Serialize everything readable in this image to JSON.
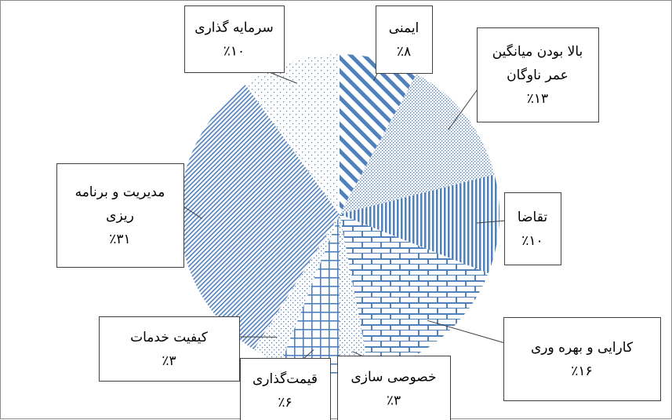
{
  "chart_data": {
    "type": "pie",
    "title": "",
    "legend": "none (callout data labels)",
    "slices": [
      {
        "label_lines": [
          "ایمنی"
        ],
        "pct_text": "٪۸",
        "value": 8,
        "pattern": "wide-diagonal"
      },
      {
        "label_lines": [
          "بالا بودن میانگین",
          "عمر ناوگان"
        ],
        "pct_text": "٪۱۳",
        "value": 13,
        "pattern": "dots-dense"
      },
      {
        "label_lines": [
          "تقاضا"
        ],
        "pct_text": "٪۱۰",
        "value": 10,
        "pattern": "vertical-lines"
      },
      {
        "label_lines": [
          "کارایی و بهره وری"
        ],
        "pct_text": "٪۱۶",
        "value": 16,
        "pattern": "bricks"
      },
      {
        "label_lines": [
          "خصوصی سازی"
        ],
        "pct_text": "٪۳",
        "value": 3,
        "pattern": "dots-light"
      },
      {
        "label_lines": [
          "قیمت‌گذاری"
        ],
        "pct_text": "٪۶",
        "value": 6,
        "pattern": "grid"
      },
      {
        "label_lines": [
          "کیفیت خدمات"
        ],
        "pct_text": "٪۳",
        "value": 3,
        "pattern": "dots-light"
      },
      {
        "label_lines": [
          "مدیریت و برنامه",
          "ریزی"
        ],
        "pct_text": "٪۳۱",
        "value": 31,
        "pattern": "small-diagonal"
      },
      {
        "label_lines": [
          "سرمایه گذاری"
        ],
        "pct_text": "٪۱۰",
        "value": 10,
        "pattern": "dots-sparse"
      }
    ]
  },
  "colors": {
    "pattern": "#4f81bd",
    "label_border": "#404040",
    "leader_line": "#404040",
    "frame_border": "#8c8c8c"
  }
}
